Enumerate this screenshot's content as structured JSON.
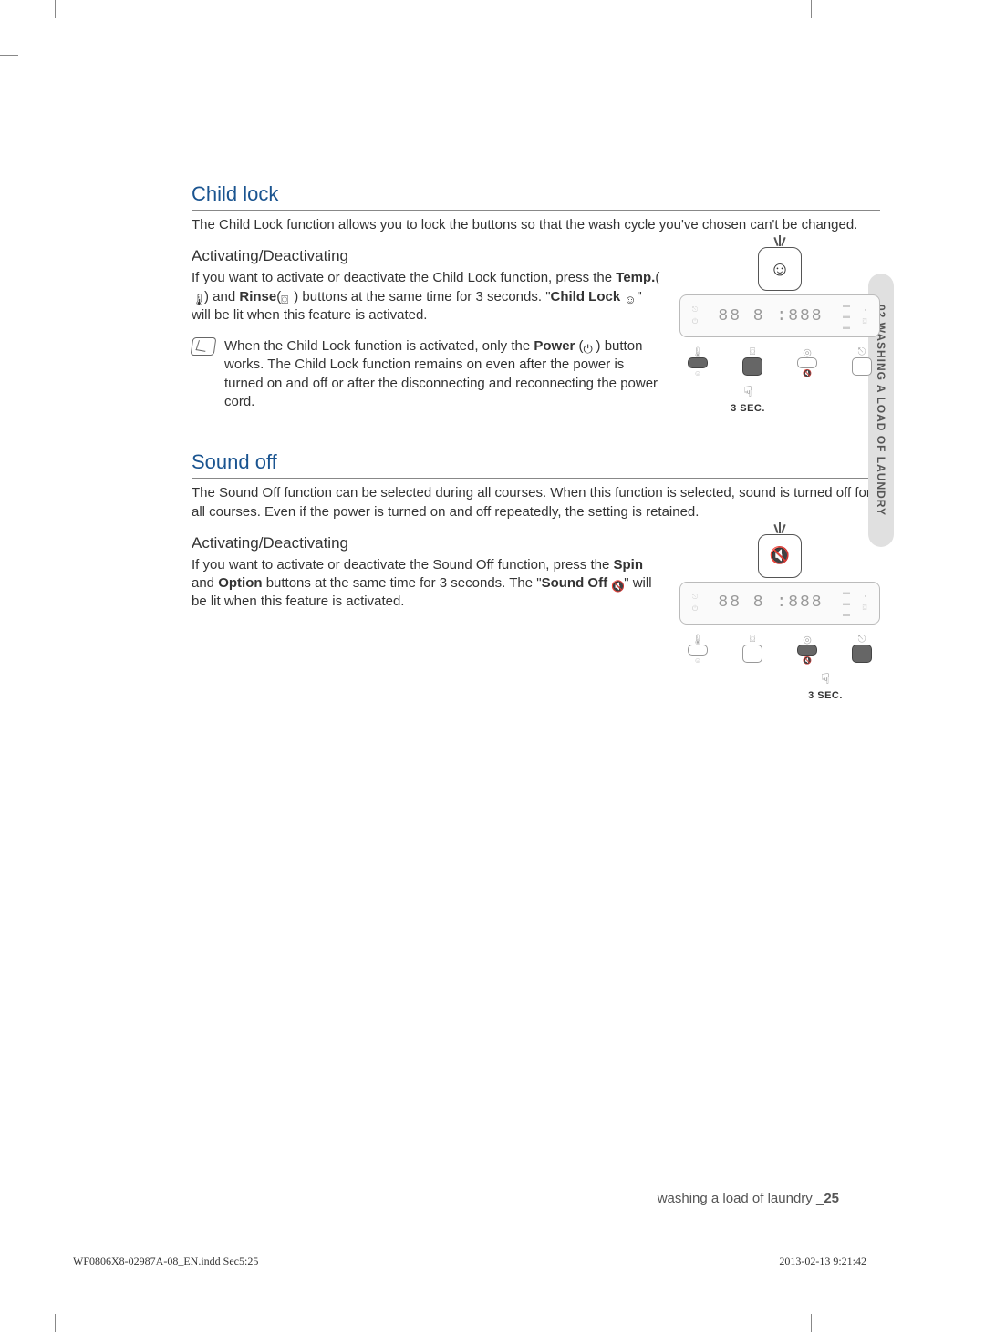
{
  "sideTab": "02 WASHING A LOAD OF LAUNDRY",
  "section1": {
    "heading": "Child lock",
    "intro": "The Child Lock function allows you to lock the buttons so that the wash cycle you've chosen can't be changed.",
    "sub": "Activating/Deactivating",
    "para_a": "If you want to activate or deactivate the Child Lock function, press the ",
    "temp": "Temp.",
    "para_b": "(",
    "para_c": ") and ",
    "rinse": "Rinse",
    "para_d": "(",
    "para_e": ") buttons at the same time for 3 seconds. \"",
    "childlock": "Child Lock",
    "para_f": "\" will be lit when this feature is activated.",
    "note_a": "When the Child Lock function is activated, only the ",
    "power": "Power",
    "note_b": " (",
    "note_c": ") button works. The Child Lock function remains on even after the power is turned on and off or after the disconnecting and reconnecting the power cord."
  },
  "section2": {
    "heading": "Sound off",
    "intro": "The Sound Off function can be selected during all courses. When this function is selected, sound is turned off for all courses. Even if the power is turned on and off repeatedly, the setting is retained.",
    "sub": "Activating/Deactivating",
    "para_a": "If you want to activate or deactivate the Sound Off function, press the ",
    "spin": "Spin",
    "para_b": " and ",
    "option": "Option",
    "para_c": " buttons at the same time for 3 seconds. The \"",
    "soundoff": "Sound Off",
    "para_d": "\" will be lit when this feature is activated."
  },
  "figure": {
    "smileIcon": "☺",
    "soundIcon": "🔇",
    "digits": "88  8  :888",
    "pressLabel": "3 SEC.",
    "pressIcon": "☟"
  },
  "footer": {
    "sectionTitle": "washing a load of laundry _",
    "pageNum": "25",
    "file": "WF0806X8-02987A-08_EN.indd   Sec5:25",
    "date": "2013-02-13      9:21:42"
  }
}
